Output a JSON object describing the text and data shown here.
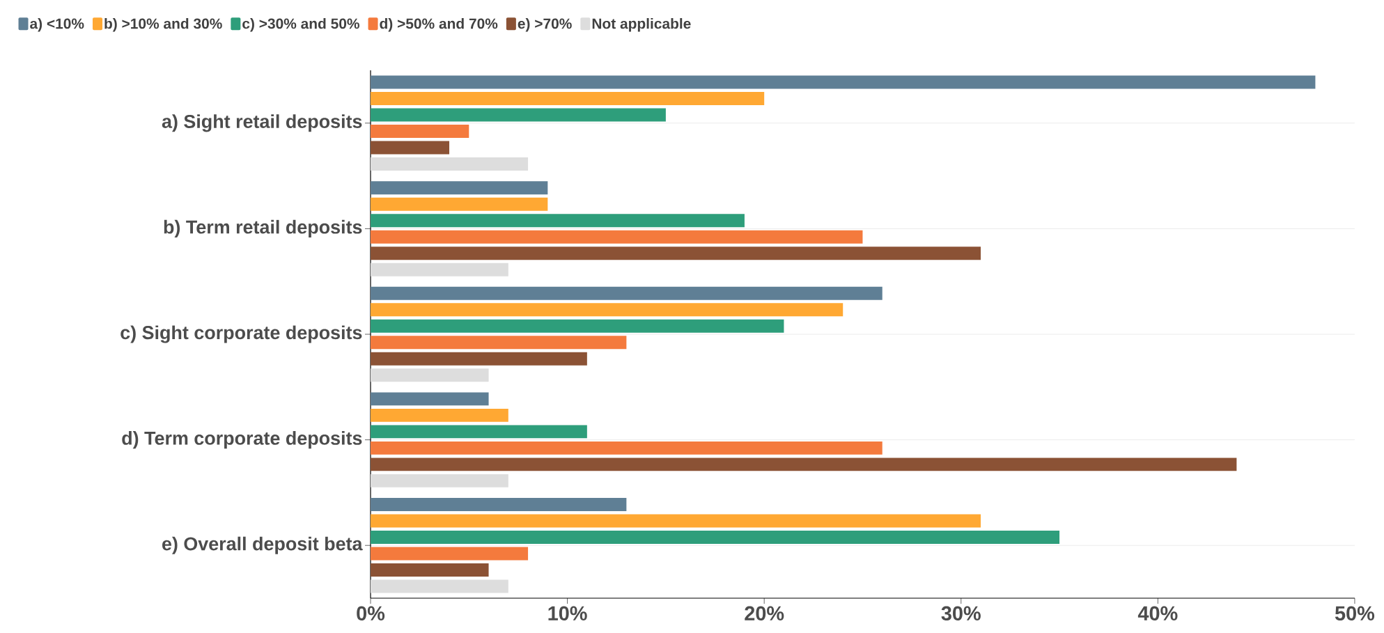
{
  "chart_data": {
    "type": "bar",
    "orientation": "horizontal",
    "categories": [
      "a) Sight retail deposits",
      "b) Term retail deposits",
      "c) Sight corporate deposits",
      "d) Term corporate deposits",
      "e) Overall deposit beta"
    ],
    "series": [
      {
        "name": "a) <10%",
        "color": "#5f7f95",
        "values": [
          48,
          9,
          26,
          6,
          13
        ]
      },
      {
        "name": "b) >10% and 30%",
        "color": "#ffa833",
        "values": [
          20,
          9,
          24,
          7,
          31
        ]
      },
      {
        "name": "c) >30% and 50%",
        "color": "#2e9e7b",
        "values": [
          15,
          19,
          21,
          11,
          35
        ]
      },
      {
        "name": "d) >50% and 70%",
        "color": "#f47a3d",
        "values": [
          5,
          25,
          13,
          26,
          8
        ]
      },
      {
        "name": "e) >70%",
        "color": "#8b5235",
        "values": [
          4,
          31,
          11,
          44,
          6
        ]
      },
      {
        "name": "Not applicable",
        "color": "#dddddd",
        "values": [
          8,
          7,
          6,
          7,
          7
        ]
      }
    ],
    "xlim": [
      0,
      50
    ],
    "xticks": [
      {
        "value": 0,
        "label": "0%"
      },
      {
        "value": 10,
        "label": "10%"
      },
      {
        "value": 20,
        "label": "20%"
      },
      {
        "value": 30,
        "label": "30%"
      },
      {
        "value": 40,
        "label": "40%"
      },
      {
        "value": 50,
        "label": "50%"
      }
    ],
    "grid": "y",
    "legend": "top"
  }
}
